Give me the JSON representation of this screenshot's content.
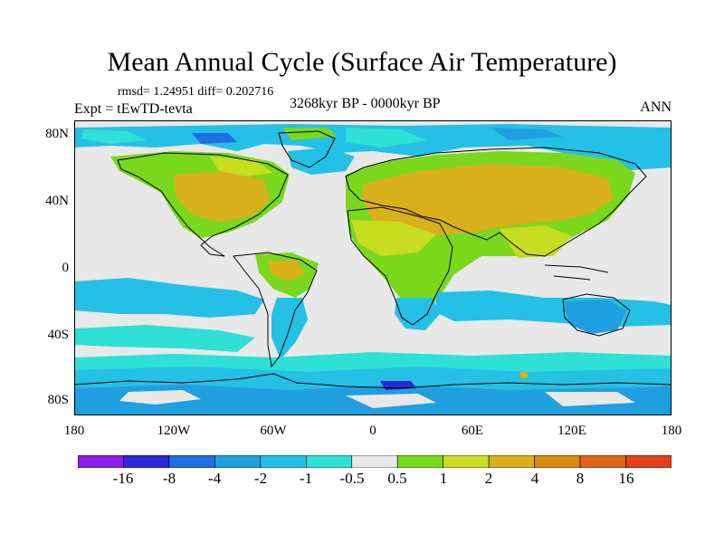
{
  "title": "Mean Annual Cycle (Surface Air Temperature)",
  "stats": "rmsd= 1.24951 diff= 0.202716",
  "period": "3268kyr BP - 0000kyr BP",
  "expt": "Expt = tEwTD-tevta",
  "season": "ANN",
  "lat_labels": [
    "80N",
    "40N",
    "0",
    "40S",
    "80S"
  ],
  "lon_labels": [
    "180",
    "120W",
    "60W",
    "0",
    "60E",
    "120E",
    "180"
  ],
  "colorbar": {
    "labels": [
      "-16",
      "-8",
      "-4",
      "-2",
      "-1",
      "-0.5",
      "0.5",
      "1",
      "2",
      "4",
      "8",
      "16"
    ],
    "colors": [
      "#8a1ee6",
      "#2b28d6",
      "#1f6fe0",
      "#1f9fe0",
      "#24c0e6",
      "#2ee0d6",
      "#e8e8e8",
      "#7ad81c",
      "#c8dc20",
      "#d8b01a",
      "#d88a10",
      "#e0641a",
      "#e0401a"
    ]
  },
  "palette": {
    "neutral": "#e8e8e8",
    "warm_light": "#7ad81c",
    "warm_mid": "#c8dc20",
    "warm": "#d8b01a",
    "cool_light": "#2ee0d6",
    "cool": "#24c0e6",
    "cool_mid": "#1f9fe0",
    "cool_dark": "#1f6fe0",
    "cold": "#2b28d6"
  }
}
